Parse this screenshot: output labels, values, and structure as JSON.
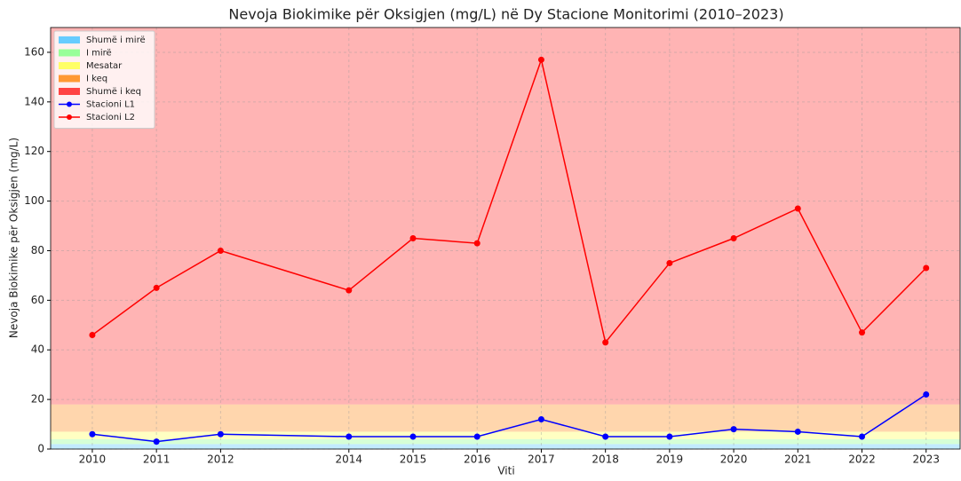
{
  "chart_data": {
    "type": "line",
    "title": "Nevoja Biokimike për Oksigjen (mg/L) në Dy Stacione Monitorimi (2010–2023)",
    "xlabel": "Viti",
    "ylabel": "Nevoja Biokimike për Oksigjen (mg/L)",
    "x": [
      2010,
      2011,
      2012,
      2014,
      2015,
      2016,
      2017,
      2018,
      2019,
      2020,
      2021,
      2022,
      2023
    ],
    "series": [
      {
        "name": "Stacioni L1",
        "color": "#0000ff",
        "values": [
          6,
          3,
          6,
          5,
          5,
          5,
          12,
          5,
          5,
          8,
          7,
          5,
          22
        ]
      },
      {
        "name": "Stacioni L2",
        "color": "#ff0000",
        "values": [
          46,
          65,
          80,
          64,
          85,
          83,
          157,
          43,
          75,
          85,
          97,
          47,
          73
        ]
      }
    ],
    "bands": [
      {
        "name": "Shumë i mirë",
        "color": "#66ccff",
        "from": 0,
        "to": 2
      },
      {
        "name": "I mirë",
        "color": "#99ff99",
        "from": 2,
        "to": 4
      },
      {
        "name": "Mesatar",
        "color": "#ffff66",
        "from": 4,
        "to": 7
      },
      {
        "name": "I keq",
        "color": "#ff9933",
        "from": 7,
        "to": 18
      },
      {
        "name": "Shumë i keq",
        "color": "#ff4444",
        "from": 18,
        "to": 170
      }
    ],
    "xlim": [
      2009.35,
      2023.53
    ],
    "xticks": [
      2010,
      2011,
      2012,
      2014,
      2015,
      2016,
      2017,
      2018,
      2019,
      2020,
      2021,
      2022,
      2023
    ],
    "ylim": [
      0,
      170
    ],
    "yticks": [
      0,
      20,
      40,
      60,
      80,
      100,
      120,
      140,
      160
    ],
    "grid": true,
    "legend": "upper left"
  }
}
